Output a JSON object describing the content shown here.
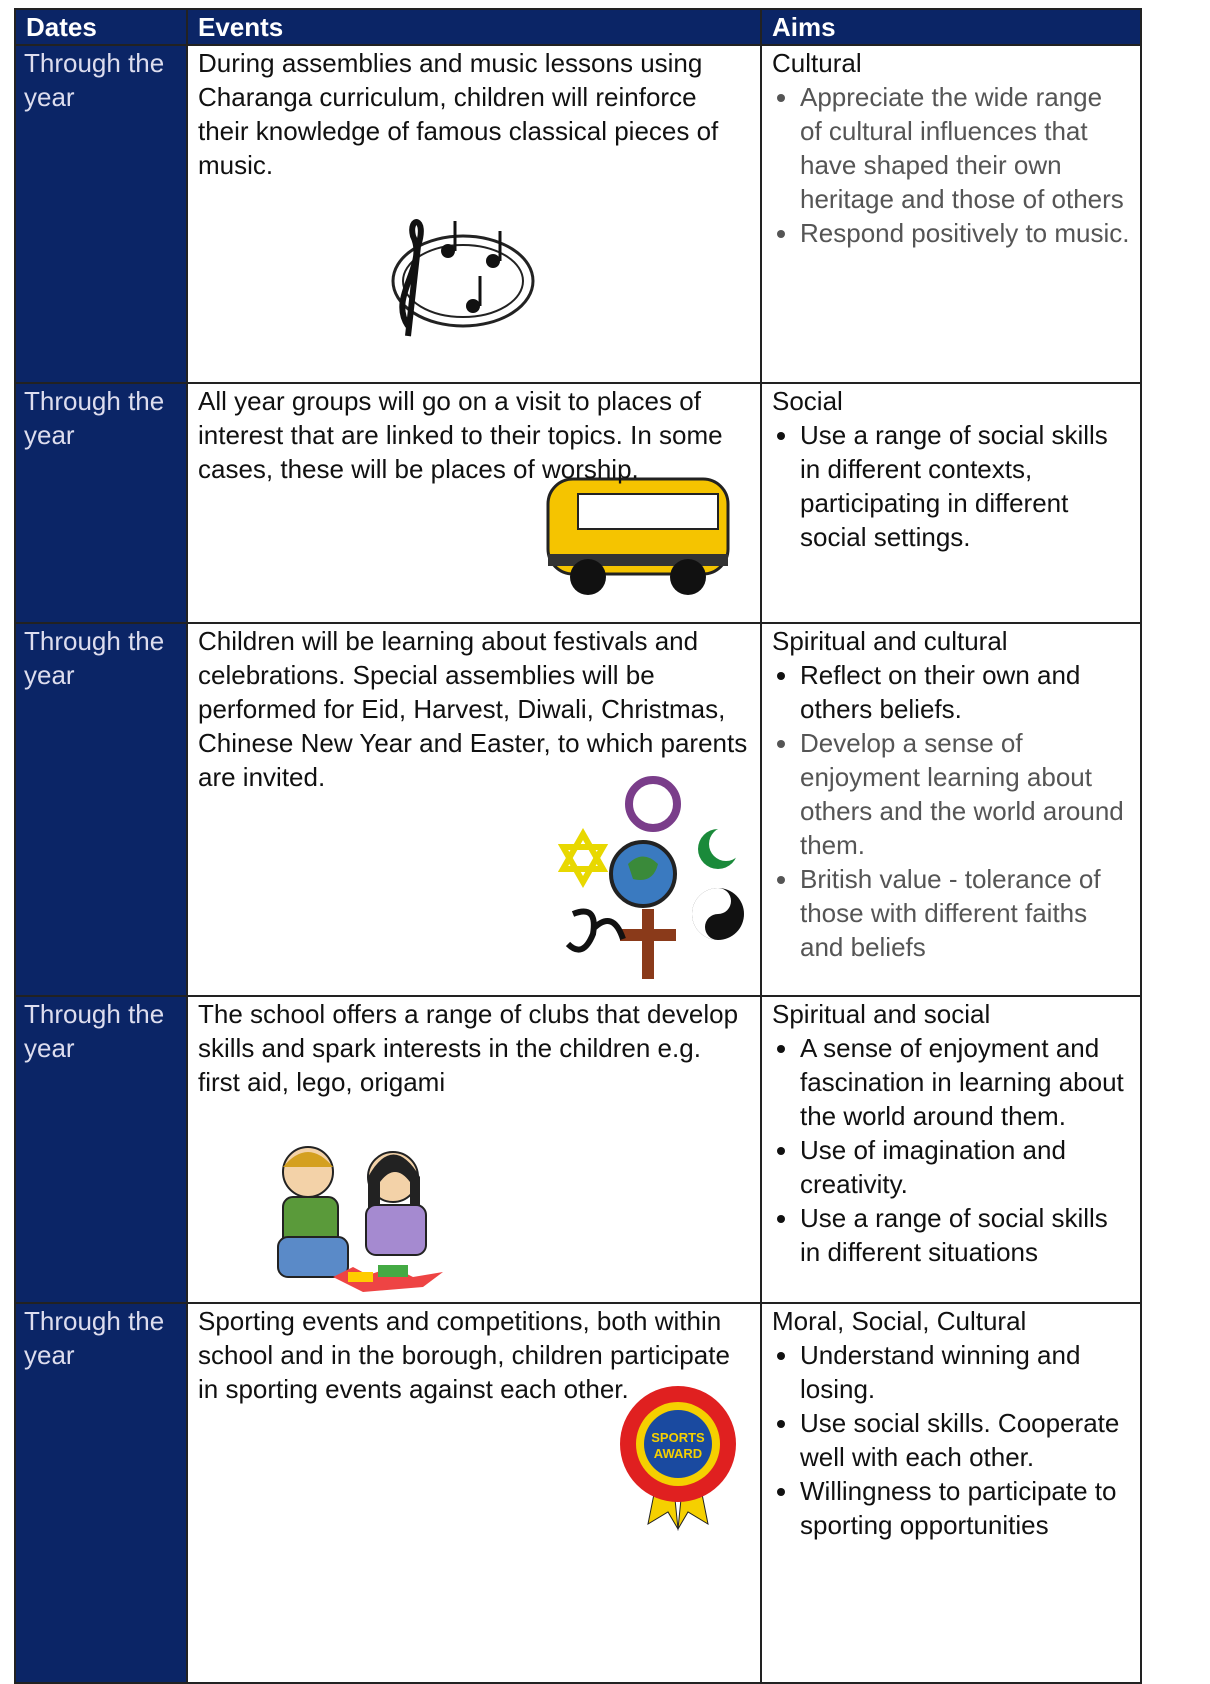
{
  "table": {
    "header": [
      "Dates",
      "Events",
      "Aims"
    ],
    "rows": [
      {
        "date": "Through the year",
        "event": "During assemblies and music lessons using Charanga curriculum, children will reinforce their knowledge of famous classical pieces of music.",
        "aim_title": "Cultural",
        "aims": [
          "Appreciate the wide range of cultural influences that have shaped their own heritage and those of others",
          "Respond positively to music."
        ]
      },
      {
        "date": "Through the year",
        "event": "All year groups will go on a visit to places of interest that are linked to their topics. In some cases, these will be places of worship.",
        "aim_title": "Social",
        "aims": [
          "Use a range of social skills in different contexts, participating in different social settings."
        ]
      },
      {
        "date": "Through the year",
        "event": "Children will be learning about festivals and celebrations. Special assemblies will be performed for Eid, Harvest, Diwali, Christmas, Chinese New Year and Easter, to which parents are invited.",
        "aim_title": "Spiritual and cultural",
        "aims": [
          "Reflect on their own and others beliefs.",
          "Develop a sense of enjoyment learning about others and the world around them.",
          "British value - tolerance of those with different faiths and beliefs"
        ]
      },
      {
        "date": "Through the year",
        "event": "The school offers a range of clubs that develop skills and spark interests in the children e.g. first aid, lego, origami",
        "aim_title": "Spiritual and social",
        "aims": [
          "A sense of enjoyment and fascination in learning about the world around them.",
          "Use of imagination and creativity.",
          "Use a range of social skills in different situations"
        ]
      },
      {
        "date": "Through the year",
        "event": "Sporting events and competitions, both within school and in the borough, children participate in sporting events against each other.",
        "aim_title": "Moral, Social, Cultural",
        "aims": [
          "Understand winning and losing.",
          "Use social skills. Cooperate well with each other.",
          "Willingness to participate to sporting opportunities"
        ],
        "badge": [
          "SPORTS",
          "AWARD"
        ]
      }
    ]
  }
}
